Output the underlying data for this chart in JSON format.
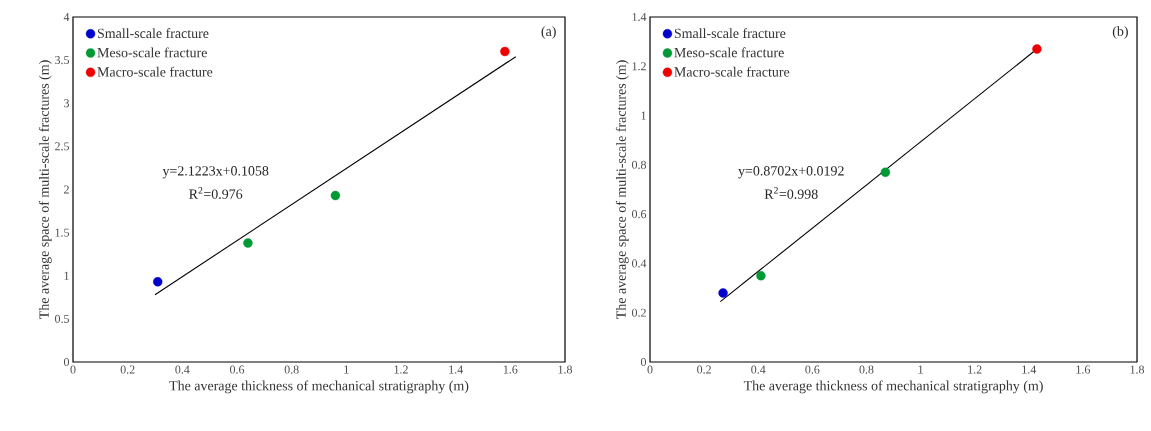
{
  "chart_data": [
    {
      "type": "scatter",
      "xlabel": "The average thickness of mechanical stratigraphy (m)",
      "ylabel": "The average space of multi-scale fractures (m)",
      "xlim": [
        0,
        1.8
      ],
      "ylim": [
        0,
        4
      ],
      "xticks": [
        0,
        0.2,
        0.4,
        0.6,
        0.8,
        1,
        1.2,
        1.4,
        1.6,
        1.8
      ],
      "yticks": [
        0,
        0.5,
        1,
        1.5,
        2,
        2.5,
        3,
        3.5,
        4
      ],
      "grid": false,
      "legend": "top left",
      "annotations": [
        "(a)",
        "y=2.1223x+0.1058",
        "R$^{2}$=0.976"
      ],
      "series": [
        {
          "name": "Small-scale fracture",
          "marker": "circle",
          "color": "#0000cc",
          "x": [
            0.31
          ],
          "values": [
            0.93
          ]
        },
        {
          "name": "Meso-scale fracture",
          "marker": "circle",
          "color": "#009933",
          "x": [
            0.64,
            0.96
          ],
          "values": [
            1.38,
            1.93
          ]
        },
        {
          "name": "Macro-scale fracture",
          "marker": "circle",
          "color": "#ee0000",
          "x": [
            1.58
          ],
          "values": [
            3.6
          ]
        },
        {
          "type": "line",
          "marker": "none",
          "color": "#000000",
          "x": [
            0.3,
            1.62
          ],
          "values": [
            0.78,
            3.54
          ]
        }
      ]
    },
    {
      "type": "scatter",
      "xlabel": "The average thickness of mechanical stratigraphy (m)",
      "ylabel": "The average space of multi-scale fractures (m)",
      "xlim": [
        0,
        1.8
      ],
      "ylim": [
        0,
        1.4
      ],
      "xticks": [
        0,
        0.2,
        0.4,
        0.6,
        0.8,
        1,
        1.2,
        1.4,
        1.6,
        1.8
      ],
      "yticks": [
        0,
        0.2,
        0.4,
        0.6,
        0.8,
        1,
        1.2,
        1.4
      ],
      "grid": false,
      "legend": "top left",
      "annotations": [
        "(b)",
        "y=0.8702x+0.0192",
        "R$^{2}$=0.998"
      ],
      "series": [
        {
          "name": "Small-scale fracture",
          "marker": "circle",
          "color": "#0000cc",
          "x": [
            0.27
          ],
          "values": [
            0.28
          ]
        },
        {
          "name": "Meso-scale fracture",
          "marker": "circle",
          "color": "#009933",
          "x": [
            0.41,
            0.87
          ],
          "values": [
            0.35,
            0.77
          ]
        },
        {
          "name": "Macro-scale fracture",
          "marker": "circle",
          "color": "#ee0000",
          "x": [
            1.43
          ],
          "values": [
            1.27
          ]
        },
        {
          "type": "line",
          "marker": "none",
          "color": "#000000",
          "x": [
            0.26,
            1.43
          ],
          "values": [
            0.245,
            1.27
          ]
        }
      ]
    }
  ]
}
